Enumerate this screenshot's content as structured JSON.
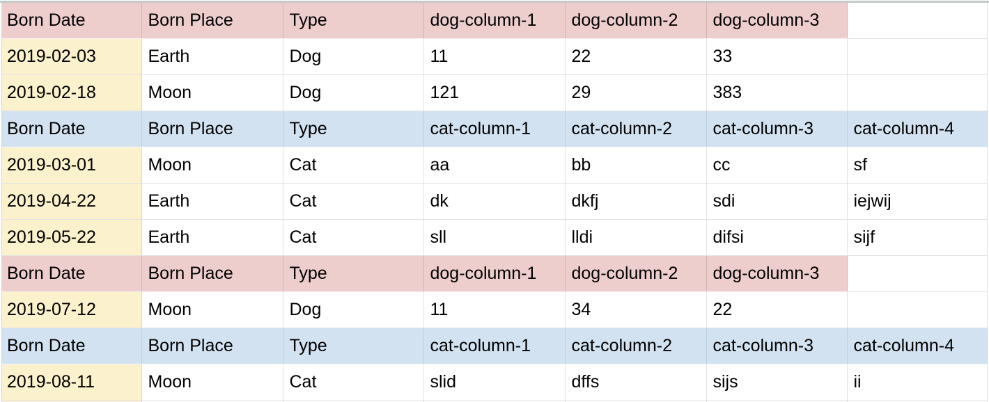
{
  "app": {
    "description": "Spreadsheet grid showing alternating dog and cat record sections"
  },
  "colors": {
    "dog_header_bg": "#edcecd",
    "cat_header_bg": "#d3e2f0",
    "date_column_bg": "#fbf1cd",
    "gridline": "#e2e2e2",
    "top_divider": "#c5c9c9",
    "text": "#000000"
  },
  "table": {
    "column_count": 7,
    "sections": [
      {
        "type": "dog",
        "header": [
          "Born Date",
          "Born Place",
          "Type",
          "dog-column-1",
          "dog-column-2",
          "dog-column-3",
          ""
        ],
        "rows": [
          [
            "2019-02-03",
            "Earth",
            "Dog",
            "11",
            "22",
            "33",
            ""
          ],
          [
            "2019-02-18",
            "Moon",
            "Dog",
            "121",
            "29",
            "383",
            ""
          ]
        ]
      },
      {
        "type": "cat",
        "header": [
          "Born Date",
          "Born Place",
          "Type",
          "cat-column-1",
          "cat-column-2",
          "cat-column-3",
          "cat-column-4"
        ],
        "rows": [
          [
            "2019-03-01",
            "Moon",
            "Cat",
            "aa",
            "bb",
            "cc",
            "sf"
          ],
          [
            "2019-04-22",
            "Earth",
            "Cat",
            "dk",
            "dkfj",
            "sdi",
            "iejwij"
          ],
          [
            "2019-05-22",
            "Earth",
            "Cat",
            "sll",
            "lldi",
            "difsi",
            "sijf"
          ]
        ]
      },
      {
        "type": "dog",
        "header": [
          "Born Date",
          "Born Place",
          "Type",
          "dog-column-1",
          "dog-column-2",
          "dog-column-3",
          ""
        ],
        "rows": [
          [
            "2019-07-12",
            "Moon",
            "Dog",
            "11",
            "34",
            "22",
            ""
          ]
        ]
      },
      {
        "type": "cat",
        "header": [
          "Born Date",
          "Born Place",
          "Type",
          "cat-column-1",
          "cat-column-2",
          "cat-column-3",
          "cat-column-4"
        ],
        "rows": [
          [
            "2019-08-11",
            "Moon",
            "Cat",
            "slid",
            "dffs",
            "sijs",
            "ii"
          ]
        ]
      }
    ]
  }
}
